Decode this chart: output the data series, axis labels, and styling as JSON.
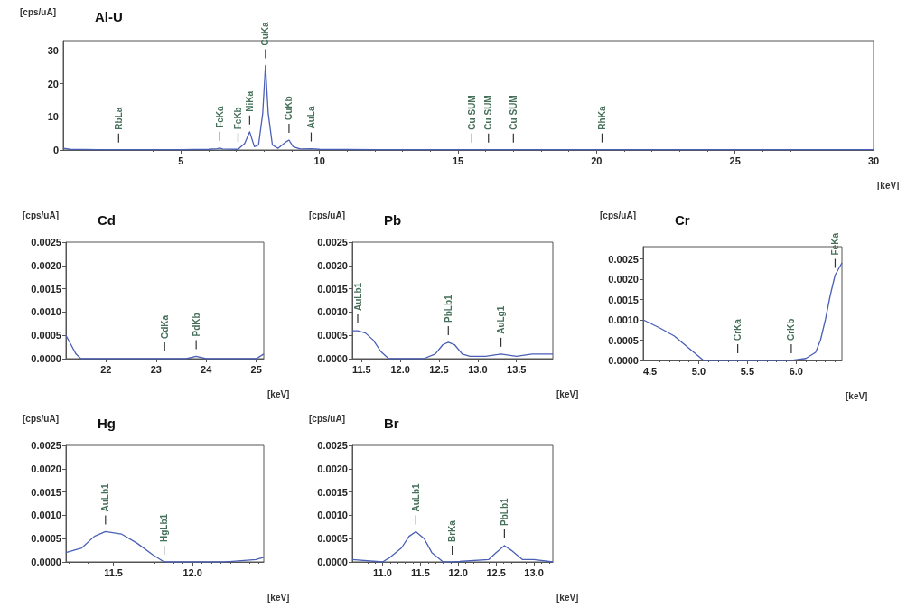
{
  "chart_data": [
    {
      "type": "line",
      "title": "Al-U",
      "xlabel": "[keV]",
      "ylabel": "[cps/uA]",
      "marker": "none",
      "xlim": [
        0.75,
        30
      ],
      "xticks": [
        5,
        10,
        15,
        20,
        25,
        30
      ],
      "ylim": [
        0,
        33
      ],
      "yticks": [
        0,
        10,
        20,
        30
      ],
      "x": [
        0.75,
        1,
        2,
        2.75,
        3,
        5,
        6,
        6.3,
        6.4,
        6.5,
        7.06,
        7.3,
        7.48,
        7.65,
        7.8,
        7.95,
        8.05,
        8.15,
        8.3,
        8.5,
        8.8,
        8.9,
        9.05,
        9.3,
        9.7,
        10,
        12,
        15.5,
        16.1,
        17,
        20.2,
        25,
        30
      ],
      "series": [
        {
          "color": "#4a5fb5",
          "values": [
            0.5,
            0.2,
            0.1,
            0.1,
            0.1,
            0.1,
            0.2,
            0.4,
            0.6,
            0.3,
            0.2,
            2,
            5.5,
            1,
            1.5,
            11,
            25.5,
            11,
            1.5,
            0.5,
            2.5,
            3,
            1,
            0.3,
            0.4,
            0.2,
            0.1,
            0.1,
            0.1,
            0.1,
            0.1,
            0.1,
            0.1
          ]
        }
      ],
      "annotations": [
        {
          "text": "RbLa",
          "x": 2.75,
          "y": 0.1
        },
        {
          "text": "FeKa",
          "x": 6.4,
          "y": 0.6
        },
        {
          "text": "FeKb",
          "x": 7.06,
          "y": 0.2
        },
        {
          "text": "NiKa",
          "x": 7.48,
          "y": 5.5
        },
        {
          "text": "CuKa",
          "x": 8.05,
          "y": 25.5
        },
        {
          "text": "CuKb",
          "x": 8.9,
          "y": 3
        },
        {
          "text": "AuLa",
          "x": 9.7,
          "y": 0.4
        },
        {
          "text": "Cu SUM",
          "x": 15.5,
          "y": 0.1
        },
        {
          "text": "Cu SUM",
          "x": 16.1,
          "y": 0.1
        },
        {
          "text": "Cu SUM",
          "x": 17,
          "y": 0.1
        },
        {
          "text": "RhKa",
          "x": 20.2,
          "y": 0.1
        }
      ]
    },
    {
      "type": "line",
      "title": "Cd",
      "xlabel": "[keV]",
      "ylabel": "[cps/uA]",
      "marker": "none",
      "xlim": [
        21.2,
        25.15
      ],
      "xticks": [
        22,
        23,
        24,
        25
      ],
      "ylim": [
        0,
        0.0025
      ],
      "yticks": [
        {
          "value": 0,
          "label": "0.0000"
        },
        {
          "value": 0.0005,
          "label": "0.0005"
        },
        {
          "value": 0.001,
          "label": "0.0010"
        },
        {
          "value": 0.0015,
          "label": "0.0015"
        },
        {
          "value": 0.002,
          "label": "0.0020"
        },
        {
          "value": 0.0025,
          "label": "0.0025"
        }
      ],
      "x": [
        21.2,
        21.3,
        21.4,
        21.5,
        22,
        23,
        23.17,
        23.6,
        23.8,
        24,
        24.5,
        25,
        25.15
      ],
      "series": [
        {
          "color": "#4a5fb5",
          "values": [
            0.0005,
            0.0003,
            0.0001,
            0,
            0,
            0,
            0,
            0,
            5e-05,
            0,
            0,
            0,
            0.0001
          ]
        }
      ],
      "annotations": [
        {
          "text": "CdKa",
          "x": 23.17,
          "y": 0
        },
        {
          "text": "PdKb",
          "x": 23.8,
          "y": 5e-05
        }
      ]
    },
    {
      "type": "line",
      "title": "Pb",
      "xlabel": "[keV]",
      "ylabel": "[cps/uA]",
      "marker": "none",
      "xlim": [
        11.38,
        13.97
      ],
      "xticks": [
        11.5,
        {
          "value": 12,
          "label": "12.0"
        },
        12.5,
        {
          "value": 13,
          "label": "13.0"
        },
        13.5
      ],
      "ylim": [
        0,
        0.0025
      ],
      "yticks": [
        {
          "value": 0,
          "label": "0.0000"
        },
        {
          "value": 0.0005,
          "label": "0.0005"
        },
        {
          "value": 0.001,
          "label": "0.0010"
        },
        {
          "value": 0.0015,
          "label": "0.0015"
        },
        {
          "value": 0.002,
          "label": "0.0020"
        },
        {
          "value": 0.0025,
          "label": "0.0025"
        }
      ],
      "x": [
        11.38,
        11.45,
        11.55,
        11.65,
        11.75,
        11.85,
        12,
        12.3,
        12.45,
        12.55,
        12.62,
        12.7,
        12.8,
        12.9,
        13.1,
        13.3,
        13.5,
        13.7,
        13.97
      ],
      "series": [
        {
          "color": "#4a5fb5",
          "values": [
            0.0006,
            0.0006,
            0.00055,
            0.0004,
            0.00015,
            0,
            0,
            0,
            0.0001,
            0.0003,
            0.00035,
            0.0003,
            0.0001,
            5e-05,
            5e-05,
            0.0001,
            5e-05,
            0.0001,
            0.0001
          ]
        }
      ],
      "annotations": [
        {
          "text": "AuLb1",
          "x": 11.45,
          "y": 0.0006
        },
        {
          "text": "PbLb1",
          "x": 12.62,
          "y": 0.00035
        },
        {
          "text": "AuLg1",
          "x": 13.3,
          "y": 0.0001
        }
      ]
    },
    {
      "type": "line",
      "title": "Cr",
      "xlabel": "[keV]",
      "ylabel": "[cps/uA]",
      "marker": "none",
      "xlim": [
        4.43,
        6.47
      ],
      "xticks": [
        4.5,
        {
          "value": 5,
          "label": "5.0"
        },
        5.5,
        {
          "value": 6,
          "label": "6.0"
        }
      ],
      "ylim": [
        0,
        0.0028
      ],
      "yticks": [
        {
          "value": 0,
          "label": "0.0000"
        },
        {
          "value": 0.0005,
          "label": "0.0005"
        },
        {
          "value": 0.001,
          "label": "0.0010"
        },
        {
          "value": 0.0015,
          "label": "0.0015"
        },
        {
          "value": 0.002,
          "label": "0.0020"
        },
        {
          "value": 0.0025,
          "label": "0.0025"
        }
      ],
      "x": [
        4.43,
        4.6,
        4.75,
        4.9,
        5,
        5.05,
        5.4,
        5.95,
        6.1,
        6.2,
        6.25,
        6.3,
        6.35,
        6.4,
        6.47
      ],
      "series": [
        {
          "color": "#4a5fb5",
          "values": [
            0.001,
            0.0008,
            0.0006,
            0.0003,
            0.0001,
            0,
            0,
            0,
            5e-05,
            0.0002,
            0.0005,
            0.001,
            0.0016,
            0.0021,
            0.0024
          ]
        }
      ],
      "annotations": [
        {
          "text": "CrKa",
          "x": 5.4,
          "y": 0
        },
        {
          "text": "CrKb",
          "x": 5.95,
          "y": 0
        },
        {
          "text": "FeKa",
          "x": 6.4,
          "y": 0.0021
        }
      ]
    },
    {
      "type": "line",
      "title": "Hg",
      "xlabel": "[keV]",
      "ylabel": "[cps/uA]",
      "marker": "none",
      "xlim": [
        11.2,
        12.45
      ],
      "xticks": [
        11.5,
        {
          "value": 12,
          "label": "12.0"
        }
      ],
      "ylim": [
        0,
        0.0025
      ],
      "yticks": [
        {
          "value": 0,
          "label": "0.0000"
        },
        {
          "value": 0.0005,
          "label": "0.0005"
        },
        {
          "value": 0.001,
          "label": "0.0010"
        },
        {
          "value": 0.0015,
          "label": "0.0015"
        },
        {
          "value": 0.002,
          "label": "0.0020"
        },
        {
          "value": 0.0025,
          "label": "0.0025"
        }
      ],
      "x": [
        11.2,
        11.3,
        11.38,
        11.45,
        11.55,
        11.65,
        11.75,
        11.82,
        12,
        12.2,
        12.4,
        12.45
      ],
      "series": [
        {
          "color": "#4a5fb5",
          "values": [
            0.0002,
            0.0003,
            0.00055,
            0.00065,
            0.0006,
            0.0004,
            0.00015,
            0,
            0,
            0,
            5e-05,
            0.0001
          ]
        }
      ],
      "annotations": [
        {
          "text": "AuLb1",
          "x": 11.45,
          "y": 0.00065
        },
        {
          "text": "HgLb1",
          "x": 11.82,
          "y": 0
        }
      ]
    },
    {
      "type": "line",
      "title": "Br",
      "xlabel": "[keV]",
      "ylabel": "[cps/uA]",
      "marker": "none",
      "xlim": [
        10.6,
        13.25
      ],
      "xticks": [
        {
          "value": 11,
          "label": "11.0"
        },
        11.5,
        {
          "value": 12,
          "label": "12.0"
        },
        12.5,
        {
          "value": 13,
          "label": "13.0"
        }
      ],
      "ylim": [
        0,
        0.0025
      ],
      "yticks": [
        {
          "value": 0,
          "label": "0.0000"
        },
        {
          "value": 0.0005,
          "label": "0.0005"
        },
        {
          "value": 0.001,
          "label": "0.0010"
        },
        {
          "value": 0.0015,
          "label": "0.0015"
        },
        {
          "value": 0.002,
          "label": "0.0020"
        },
        {
          "value": 0.0025,
          "label": "0.0025"
        }
      ],
      "x": [
        10.6,
        11,
        11.1,
        11.25,
        11.35,
        11.44,
        11.55,
        11.65,
        11.8,
        11.92,
        12.4,
        12.5,
        12.61,
        12.7,
        12.85,
        13,
        13.25
      ],
      "series": [
        {
          "color": "#4a5fb5",
          "values": [
            5e-05,
            0,
            0.0001,
            0.0003,
            0.00055,
            0.00065,
            0.0005,
            0.0002,
            0,
            0,
            5e-05,
            0.0002,
            0.00035,
            0.00025,
            5e-05,
            5e-05,
            0
          ]
        }
      ],
      "annotations": [
        {
          "text": "AuLb1",
          "x": 11.44,
          "y": 0.00065
        },
        {
          "text": "BrKa",
          "x": 11.92,
          "y": 0
        },
        {
          "text": "PbLb1",
          "x": 12.61,
          "y": 0.00035
        }
      ]
    }
  ]
}
